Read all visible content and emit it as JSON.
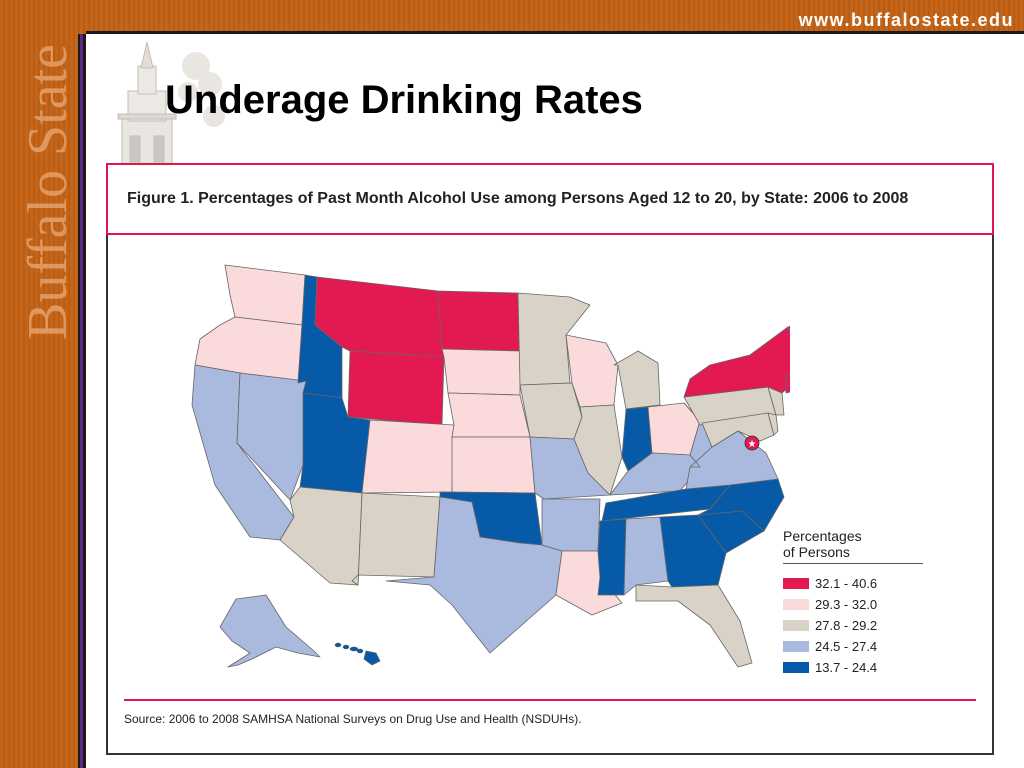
{
  "header": {
    "url": "www.buffalostate.edu",
    "brand": "Buffalo State"
  },
  "slide": {
    "title": "Underage Drinking Rates"
  },
  "figure": {
    "title": "Figure 1. Percentages of Past Month Alcohol Use among Persons Aged 12 to 20, by State: 2006 to 2008",
    "source": "Source: 2006 to 2008 SAMHSA National Surveys on Drug Use and Health (NSDUHs)."
  },
  "legend": {
    "title_line1": "Percentages",
    "title_line2": "of Persons",
    "items": [
      {
        "label": "32.1 - 40.6",
        "color": "#e31a52"
      },
      {
        "label": "29.3 - 32.0",
        "color": "#fadadb"
      },
      {
        "label": "27.8 - 29.2",
        "color": "#d9d2c6"
      },
      {
        "label": "24.5 - 27.4",
        "color": "#aab9de"
      },
      {
        "label": "13.7 - 24.4",
        "color": "#075aa7"
      }
    ]
  },
  "map_data": {
    "states": {
      "WA": "29.3 - 32.0",
      "OR": "29.3 - 32.0",
      "CA": "24.5 - 27.4",
      "NV": "24.5 - 27.4",
      "ID": "13.7 - 24.4",
      "MT": "32.1 - 40.6",
      "WY": "32.1 - 40.6",
      "UT": "13.7 - 24.4",
      "AZ": "27.8 - 29.2",
      "CO": "29.3 - 32.0",
      "NM": "27.8 - 29.2",
      "ND": "32.1 - 40.6",
      "SD": "29.3 - 32.0",
      "NE": "29.3 - 32.0",
      "KS": "29.3 - 32.0",
      "OK": "13.7 - 24.4",
      "TX": "24.5 - 27.4",
      "MN": "27.8 - 29.2",
      "IA": "27.8 - 29.2",
      "MO": "24.5 - 27.4",
      "AR": "24.5 - 27.4",
      "LA": "29.3 - 32.0",
      "WI": "29.3 - 32.0",
      "IL": "27.8 - 29.2",
      "MI": "27.8 - 29.2",
      "IN": "13.7 - 24.4",
      "OH": "29.3 - 32.0",
      "KY": "24.5 - 27.4",
      "TN": "13.7 - 24.4",
      "MS": "13.7 - 24.4",
      "AL": "24.5 - 27.4",
      "GA": "13.7 - 24.4",
      "FL": "27.8 - 29.2",
      "SC": "13.7 - 24.4",
      "NC": "13.7 - 24.4",
      "VA": "24.5 - 27.4",
      "WV": "24.5 - 27.4",
      "PA": "27.8 - 29.2",
      "NY": "32.1 - 40.6",
      "VT": "32.1 - 40.6",
      "NH": "32.1 - 40.6",
      "ME": "29.3 - 32.0",
      "MA": "32.1 - 40.6",
      "CT": "32.1 - 40.6",
      "RI": "32.1 - 40.6",
      "NJ": "27.8 - 29.2",
      "DE": "27.8 - 29.2",
      "MD": "27.8 - 29.2",
      "DC": "32.1 - 40.6",
      "AK": "24.5 - 27.4",
      "HI": "13.7 - 24.4"
    }
  }
}
